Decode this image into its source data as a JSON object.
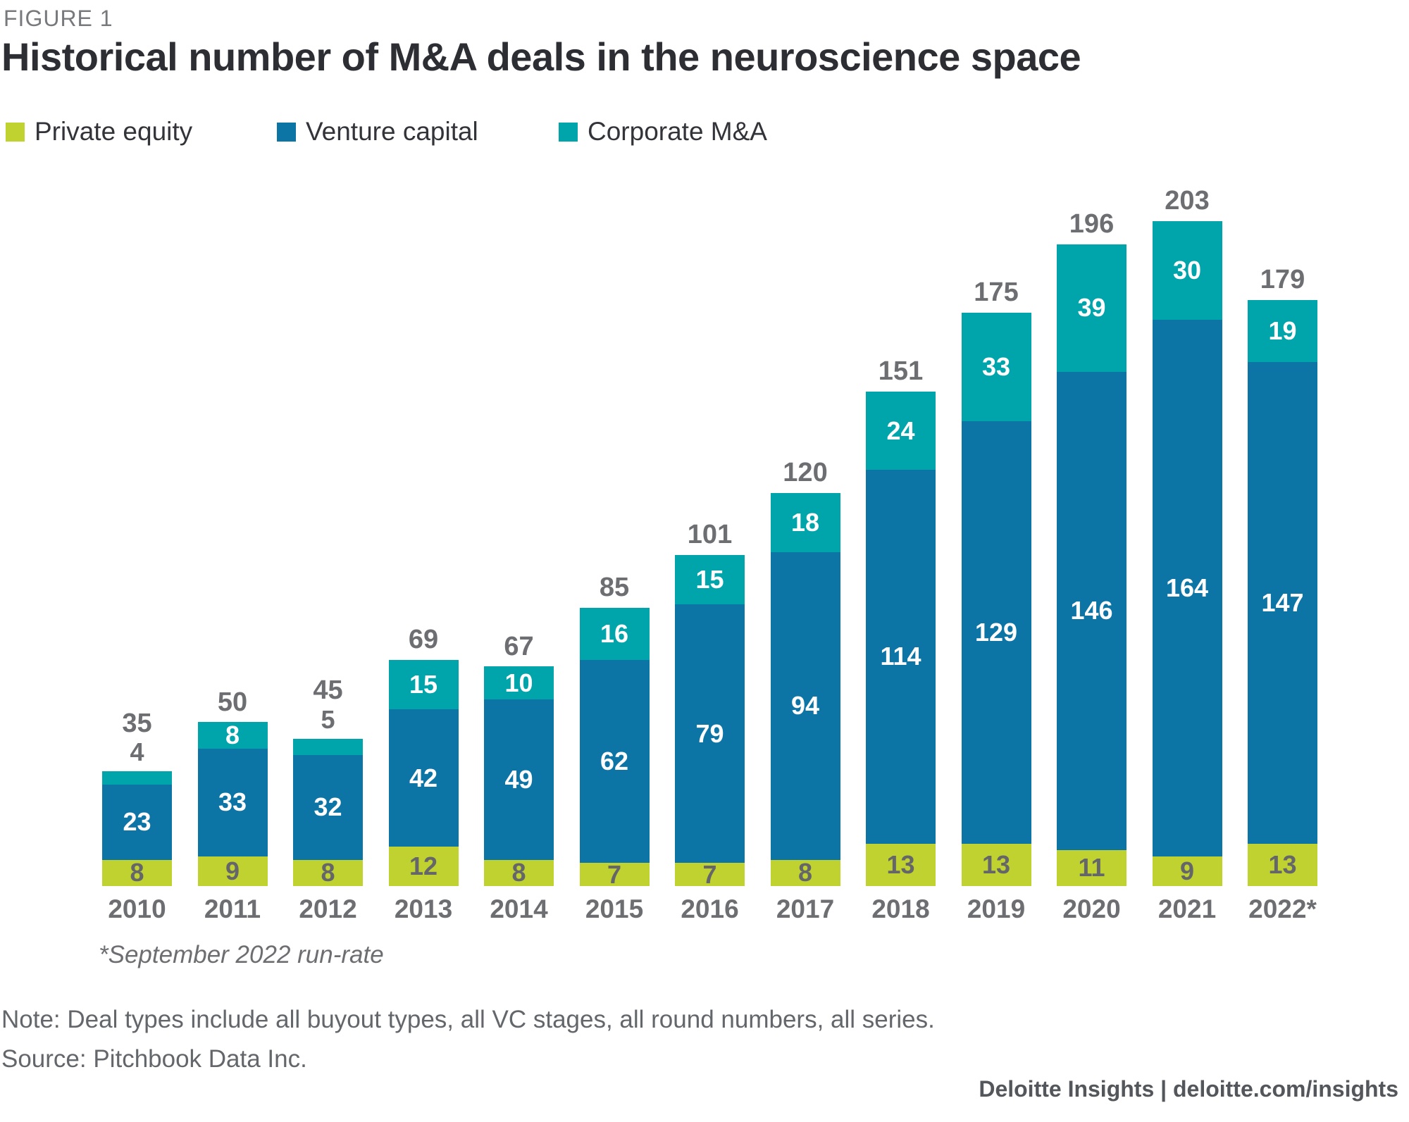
{
  "figure_label": "FIGURE 1",
  "title": "Historical number of M&A deals in the neuroscience space",
  "legend": [
    {
      "label": "Private equity",
      "color": "#C0D22F"
    },
    {
      "label": "Venture capital",
      "color": "#0D74A6"
    },
    {
      "label": "Corporate M&A",
      "color": "#00A5AB"
    }
  ],
  "chart_data": {
    "type": "bar",
    "stacked": true,
    "title": "Historical number of M&A deals in the neuroscience space",
    "categories": [
      "2010",
      "2011",
      "2012",
      "2013",
      "2014",
      "2015",
      "2016",
      "2017",
      "2018",
      "2019",
      "2020",
      "2021",
      "2022*"
    ],
    "series": [
      {
        "name": "Private equity",
        "color": "#C0D22F",
        "label_color": "#65666A",
        "values": [
          8,
          9,
          8,
          12,
          8,
          7,
          7,
          8,
          13,
          13,
          11,
          9,
          13
        ]
      },
      {
        "name": "Venture capital",
        "color": "#0D74A6",
        "label_color": "#ffffff",
        "values": [
          23,
          33,
          32,
          42,
          49,
          62,
          79,
          94,
          114,
          129,
          146,
          164,
          147
        ]
      },
      {
        "name": "Corporate M&A",
        "color": "#00A5AB",
        "label_color": "#ffffff",
        "values": [
          4,
          8,
          5,
          15,
          10,
          16,
          15,
          18,
          24,
          33,
          39,
          30,
          19
        ]
      }
    ],
    "totals": [
      35,
      50,
      45,
      69,
      67,
      85,
      101,
      120,
      151,
      175,
      196,
      203,
      179
    ],
    "ylim": [
      0,
      203
    ],
    "grid": false,
    "axes_shown": false,
    "legend_position": "top",
    "value_labels": "inside-segments, small top segments labeled above bar, totals above bars"
  },
  "footnote": "*September 2022 run-rate",
  "note": "Note: Deal types include all buyout types, all VC stages, all round numbers, all series.",
  "source": "Source: Pitchbook Data Inc.",
  "footer": "Deloitte Insights | deloitte.com/insights"
}
